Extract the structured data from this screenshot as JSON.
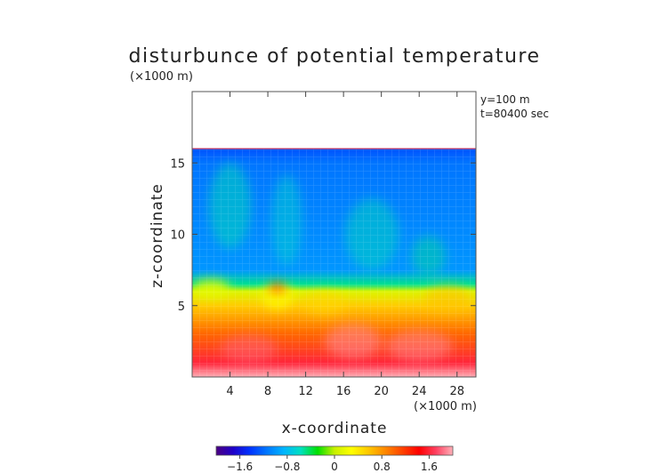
{
  "chart_data": {
    "type": "heatmap",
    "title": "disturbunce of potential temperature",
    "y_unit_note": "(×1000 m)",
    "x_unit_note": "(×1000 m)",
    "info_lines": [
      "y=100 m",
      "t=80400 sec"
    ],
    "xlabel": "x-coordinate",
    "ylabel": "z-coordinate",
    "xlim": [
      0,
      30
    ],
    "ylim": [
      0,
      20
    ],
    "x_ticks": [
      4,
      8,
      12,
      16,
      20,
      24,
      28
    ],
    "x_tick_labels": [
      "4",
      "8",
      "12",
      "16",
      "20",
      "24",
      "28"
    ],
    "y_ticks": [
      5,
      10,
      15
    ],
    "y_tick_labels": [
      "5",
      "10",
      "15"
    ],
    "data_top_z": 16,
    "field_profile": [
      {
        "z": 0,
        "value": 2.0
      },
      {
        "z": 1,
        "value": 1.6
      },
      {
        "z": 3,
        "value": 1.0
      },
      {
        "z": 5,
        "value": 0.55
      },
      {
        "z": 6,
        "value": 0.1
      },
      {
        "z": 6.5,
        "value": -0.5
      },
      {
        "z": 7.5,
        "value": -1.0
      },
      {
        "z": 10,
        "value": -1.05
      },
      {
        "z": 15,
        "value": -1.15
      },
      {
        "z": 16,
        "value": -1.3
      }
    ],
    "colorbar": {
      "min": -2,
      "max": 2,
      "ticks": [
        -1.6,
        -0.8,
        0,
        0.8,
        1.6
      ],
      "tick_labels": [
        "−1.6",
        "−0.8",
        "0",
        "0.8",
        "1.6"
      ],
      "stops": [
        "#4b0082",
        "#1e00c8",
        "#0033ff",
        "#0077ff",
        "#00b4ff",
        "#00e0c0",
        "#00e000",
        "#c8f000",
        "#ffff00",
        "#ffc800",
        "#ff8800",
        "#ff4400",
        "#ff0000",
        "#ff4060",
        "#ffb0b8"
      ]
    }
  }
}
